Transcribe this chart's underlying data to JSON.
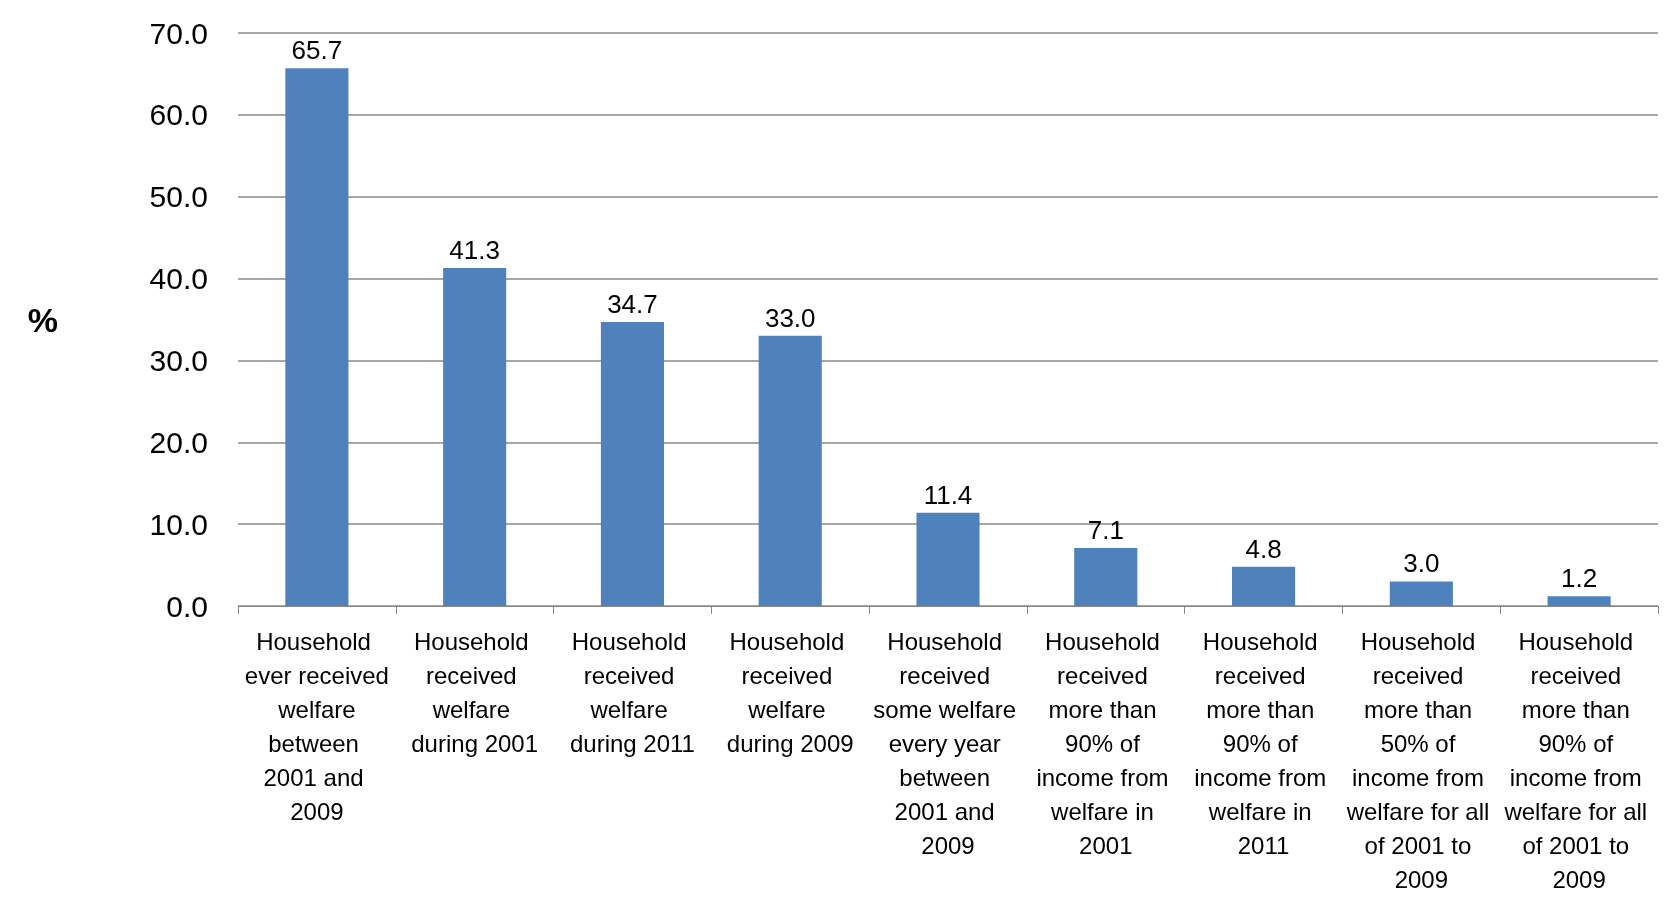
{
  "chart_data": {
    "type": "bar",
    "ylabel": "%",
    "categories": [
      "Household ever received welfare between 2001 and 2009",
      "Household received welfare during 2001",
      "Household received welfare during 2011",
      "Household received welfare during 2009",
      "Household received some welfare every year between 2001 and 2009",
      "Household received more than 90% of income from welfare in 2001",
      "Household received more than 90% of income from welfare in 2011",
      "Household received more than 50% of income from welfare for all of 2001 to 2009",
      "Household received more than 90% of income from welfare for all of 2001 to 2009"
    ],
    "values": [
      65.7,
      41.3,
      34.7,
      33.0,
      11.4,
      7.1,
      4.8,
      3.0,
      1.2
    ],
    "value_labels": [
      "65.7",
      "41.3",
      "34.7",
      "33.0",
      "11.4",
      "7.1",
      "4.8",
      "3.0",
      "1.2"
    ],
    "color": "#4f81bd",
    "ylim": [
      0,
      70
    ],
    "yticks": [
      {
        "value": 0,
        "label": "0.0"
      },
      {
        "value": 10,
        "label": "10.0"
      },
      {
        "value": 20,
        "label": "20.0"
      },
      {
        "value": 30,
        "label": "30.0"
      },
      {
        "value": 40,
        "label": "40.0"
      },
      {
        "value": 50,
        "label": "50.0"
      },
      {
        "value": 60,
        "label": "60.0"
      },
      {
        "value": 70,
        "label": "70.0"
      }
    ],
    "grid": "y"
  }
}
